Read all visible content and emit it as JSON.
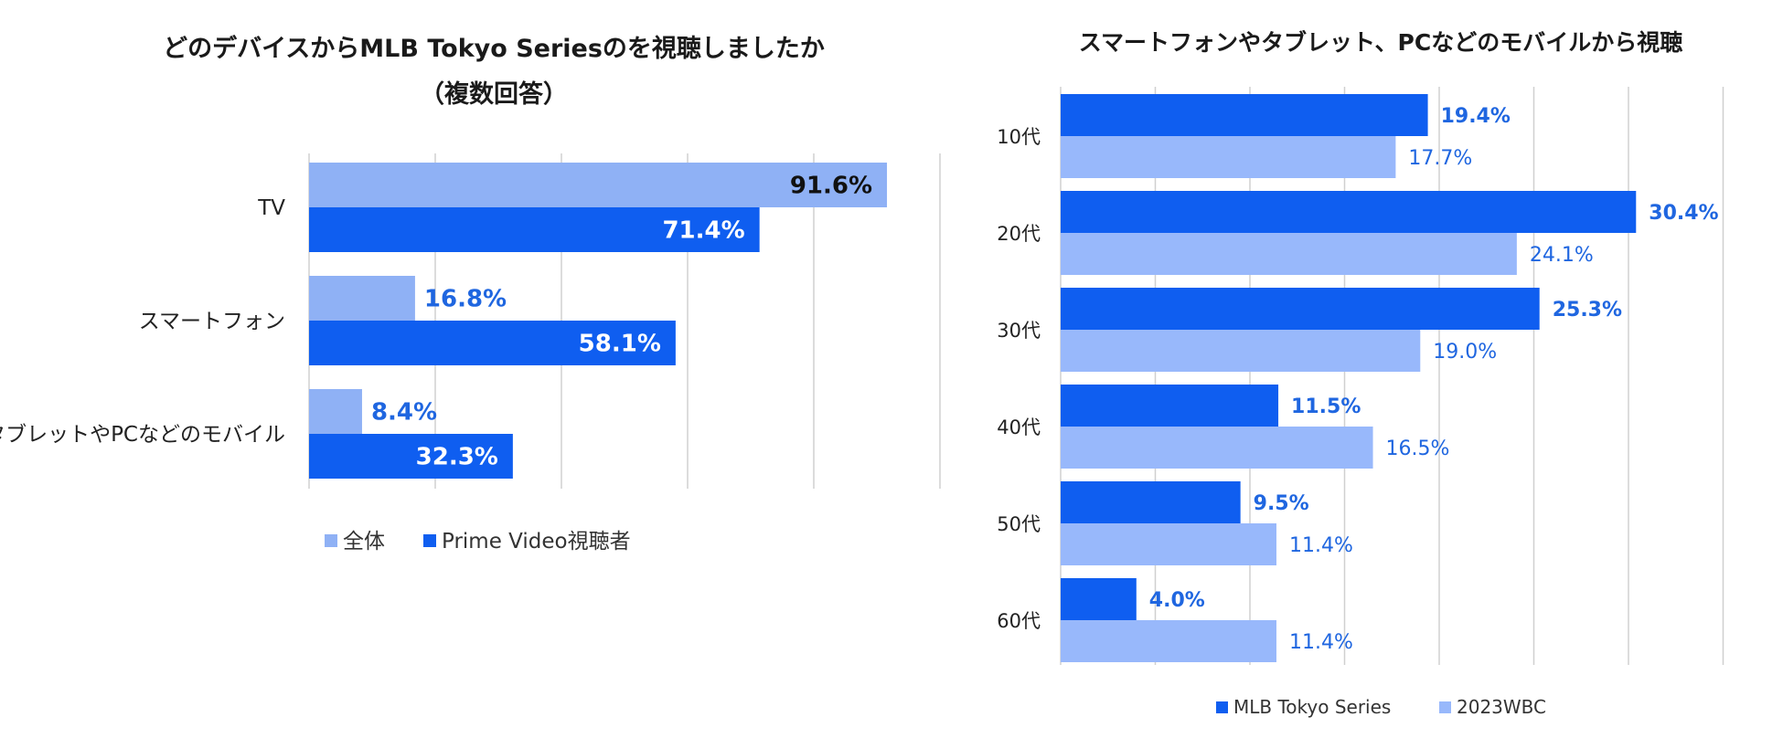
{
  "colors": {
    "dark_blue": "#0f5ef0",
    "light_blue": "#8fb1f5",
    "light_blue2": "#98b8fb",
    "label_blue": "#1f66e0",
    "grid": "#d0d0d0"
  },
  "chart_data": [
    {
      "type": "bar",
      "orientation": "horizontal",
      "title": "どのデバイスからMLB Tokyo Seriesのを視聴しましたか",
      "subtitle": "（複数回答）",
      "categories": [
        "TV",
        "スマートフォン",
        "タブレットやPCなどのモバイル"
      ],
      "series": [
        {
          "name": "全体",
          "values": [
            91.6,
            16.8,
            8.4
          ],
          "labels": [
            "91.6%",
            "16.8%",
            "8.4%"
          ]
        },
        {
          "name": "Prime Video視聴者",
          "values": [
            71.4,
            58.1,
            32.3
          ],
          "labels": [
            "71.4%",
            "58.1%",
            "32.3%"
          ]
        }
      ],
      "xlim": [
        0,
        100
      ],
      "grid": true,
      "legend": "bottom"
    },
    {
      "type": "bar",
      "orientation": "horizontal",
      "title": "スマートフォンやタブレット、PCなどのモバイルから視聴",
      "categories": [
        "10代",
        "20代",
        "30代",
        "40代",
        "50代",
        "60代"
      ],
      "series": [
        {
          "name": "MLB Tokyo Series",
          "values": [
            19.4,
            30.4,
            25.3,
            11.5,
            9.5,
            4.0
          ],
          "labels": [
            "19.4%",
            "30.4%",
            "25.3%",
            "11.5%",
            "9.5%",
            "4.0%"
          ]
        },
        {
          "name": "2023WBC",
          "values": [
            17.7,
            24.1,
            19.0,
            16.5,
            11.4,
            11.4
          ],
          "labels": [
            "17.7%",
            "24.1%",
            "19.0%",
            "16.5%",
            "11.4%",
            "11.4%"
          ]
        }
      ],
      "xlim": [
        0,
        35
      ],
      "grid": true,
      "legend": "bottom"
    }
  ]
}
